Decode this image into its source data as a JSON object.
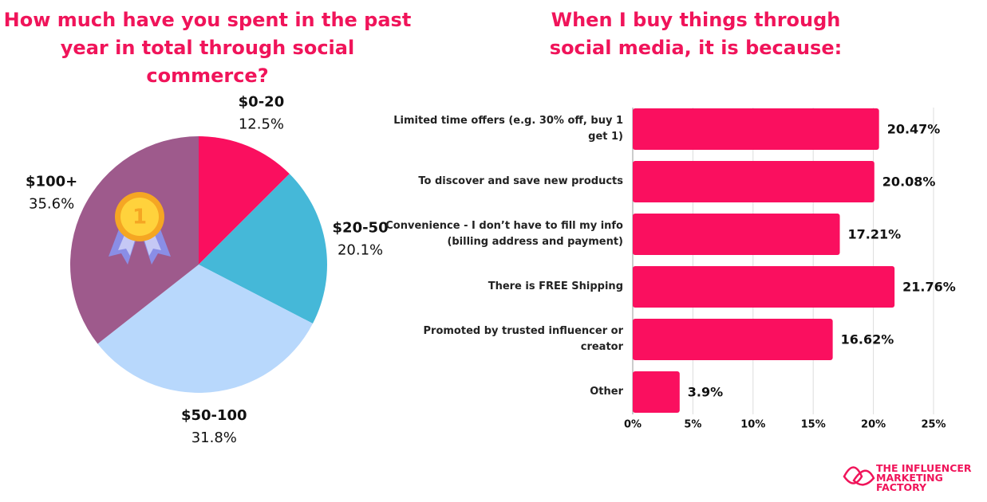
{
  "chart_data": [
    {
      "type": "pie",
      "title": "How much have you spent in the past year in total through social commerce?",
      "categories": [
        "$0-20",
        "$20-50",
        "$50-100",
        "$100+"
      ],
      "values": [
        12.5,
        20.1,
        31.8,
        35.6
      ],
      "value_labels": [
        "12.5%",
        "20.1%",
        "31.8%",
        "35.6%"
      ],
      "colors": [
        "#fa0f5f",
        "#45b8d8",
        "#b8d8fc",
        "#9e5a8c"
      ]
    },
    {
      "type": "hbar",
      "title": "When I buy things through social media, it is because:",
      "categories": [
        "Limited time offers (e.g. 30% off, buy 1 get 1)",
        "To discover and save new products",
        "Convenience - I don’t have to fill my info (billing address and payment)",
        "There is FREE Shipping",
        "Promoted by trusted influencer or creator",
        "Other"
      ],
      "values": [
        20.47,
        20.08,
        17.21,
        21.76,
        16.62,
        3.9
      ],
      "value_labels": [
        "20.47%",
        "20.08%",
        "17.21%",
        "21.76%",
        "16.62%",
        "3.9%"
      ],
      "color": "#fa0f5f",
      "xlim": [
        0,
        25
      ],
      "xticks": [
        {
          "value": 0,
          "label": "0%"
        },
        {
          "value": 5,
          "label": "5%"
        },
        {
          "value": 10,
          "label": "10%"
        },
        {
          "value": 15,
          "label": "15%"
        },
        {
          "value": 20,
          "label": "20%"
        },
        {
          "value": 25,
          "label": "25%"
        }
      ],
      "grid": true
    }
  ],
  "brand": "THE INFLUENCER MARKETING FACTORY"
}
